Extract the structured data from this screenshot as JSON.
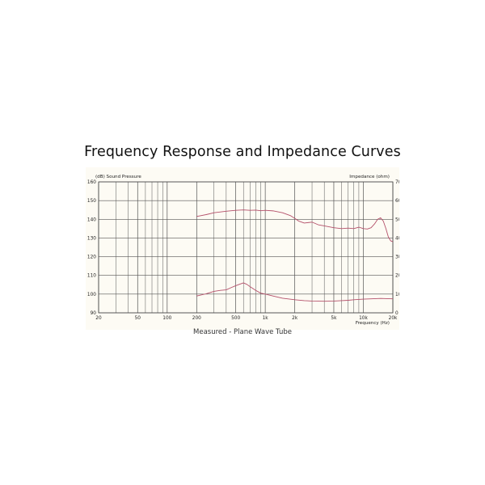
{
  "title": "Frequency Response and Impedance Curves",
  "caption": "Measured - Plane Wave Tube",
  "chart_data": {
    "type": "line",
    "title": "Frequency Response and Impedance Curves",
    "left_axis_label": "(dB) Sound Pressure",
    "right_axis_label": "Impedance (ohm)",
    "xlabel": "Frequency (Hz)",
    "x_scale": "log",
    "xlim": [
      20,
      20000
    ],
    "ylim_left": [
      90,
      160
    ],
    "ylim_right": [
      0,
      70
    ],
    "grid": true,
    "x_ticks": [
      {
        "value": 20,
        "label": "20"
      },
      {
        "value": 50,
        "label": "50"
      },
      {
        "value": 100,
        "label": "100"
      },
      {
        "value": 200,
        "label": "200"
      },
      {
        "value": 500,
        "label": "500"
      },
      {
        "value": 1000,
        "label": "1k"
      },
      {
        "value": 2000,
        "label": "2k"
      },
      {
        "value": 5000,
        "label": "5k"
      },
      {
        "value": 10000,
        "label": "10k"
      },
      {
        "value": 20000,
        "label": "20k"
      }
    ],
    "y_ticks_left": [
      "90",
      "100",
      "110",
      "120",
      "130",
      "140",
      "150",
      "160"
    ],
    "y_ticks_right": [
      "0",
      "10",
      "20",
      "30",
      "40",
      "50",
      "60",
      "70"
    ],
    "series_color": "#b4506a",
    "series": [
      {
        "axis": "left",
        "x": [
          200,
          250,
          300,
          400,
          500,
          600,
          700,
          800,
          900,
          1000,
          1200,
          1500,
          1800,
          2000,
          2200,
          2500,
          3000,
          3500,
          4000,
          5000,
          6000,
          7000,
          8000,
          9000,
          10000,
          11000,
          12000,
          13000,
          14000,
          15000,
          16000,
          17000,
          18000,
          19000,
          20000
        ],
        "y": [
          141.5,
          142.5,
          143.5,
          144.3,
          144.8,
          145.0,
          144.8,
          144.9,
          144.6,
          144.8,
          144.5,
          143.5,
          142.0,
          140.5,
          139.0,
          138.0,
          138.5,
          137.0,
          136.5,
          135.5,
          135.0,
          135.3,
          135.0,
          135.8,
          135.0,
          134.8,
          135.5,
          137.5,
          140.0,
          140.8,
          139.0,
          135.0,
          130.5,
          128.5,
          128.0
        ]
      },
      {
        "axis": "right",
        "x": [
          200,
          250,
          300,
          350,
          400,
          450,
          500,
          550,
          600,
          650,
          700,
          800,
          900,
          1000,
          1200,
          1500,
          2000,
          2500,
          3000,
          4000,
          5000,
          6000,
          7000,
          8000,
          10000,
          12000,
          15000,
          20000
        ],
        "y": [
          9.0,
          10.2,
          11.5,
          12.0,
          12.3,
          13.5,
          14.5,
          15.3,
          16.0,
          15.2,
          14.0,
          12.0,
          10.5,
          10.0,
          9.0,
          7.8,
          7.0,
          6.5,
          6.3,
          6.2,
          6.3,
          6.5,
          6.7,
          7.0,
          7.3,
          7.5,
          7.7,
          7.5
        ]
      }
    ]
  }
}
